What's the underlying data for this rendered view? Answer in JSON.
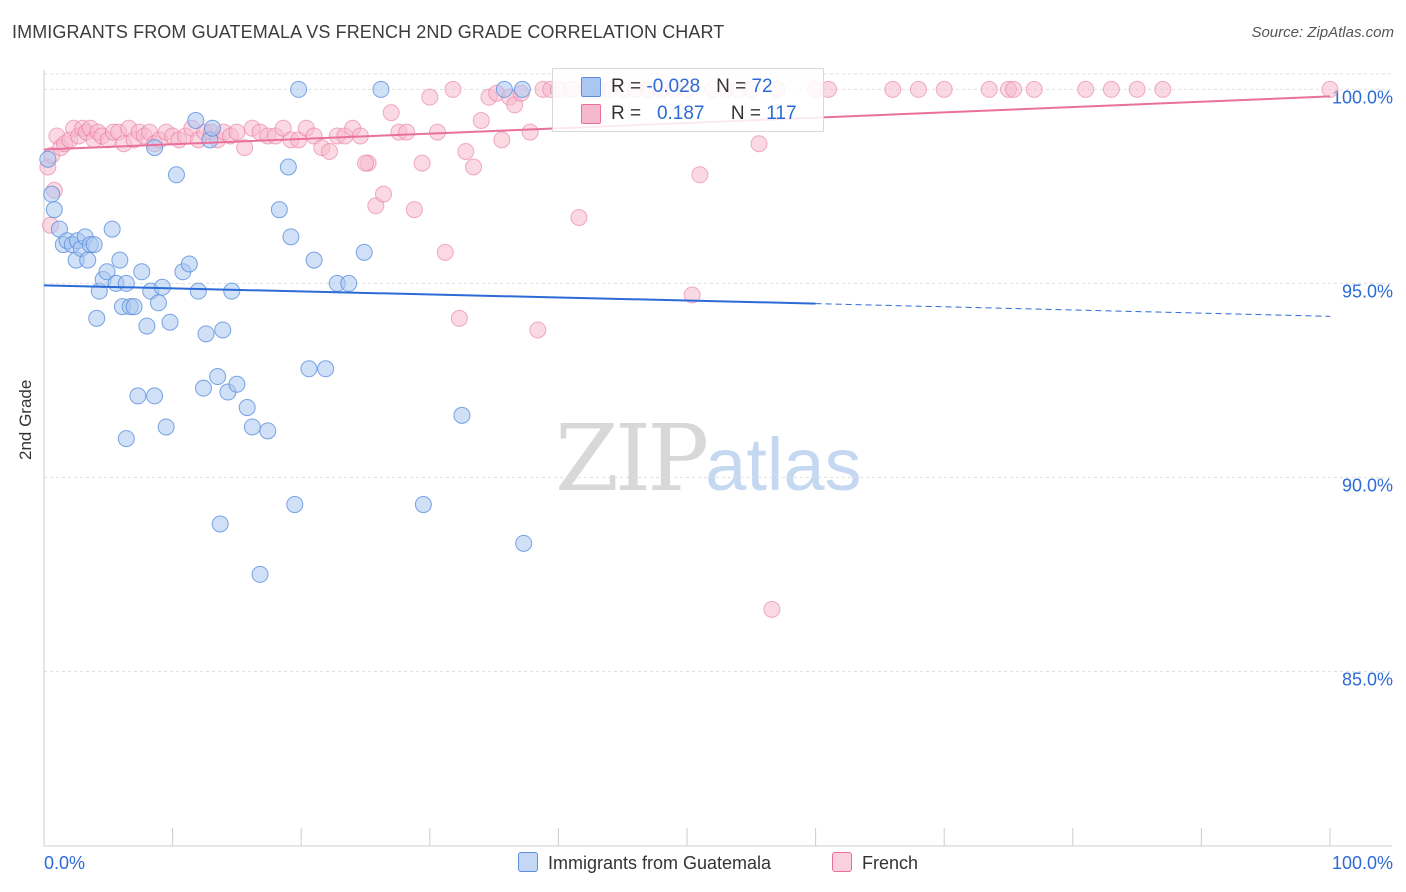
{
  "header": {
    "title": "IMMIGRANTS FROM GUATEMALA VS FRENCH 2ND GRADE CORRELATION CHART",
    "source": "Source: ZipAtlas.com"
  },
  "watermark": {
    "zip": "ZIP",
    "atlas": "atlas"
  },
  "legend_top": {
    "rows": [
      {
        "r_label": "R = ",
        "r_value": "-0.028",
        "n_label": "N = ",
        "n_value": "72"
      },
      {
        "r_label": "R = ",
        "r_value": "0.187",
        "n_label": "N = ",
        "n_value": "117"
      }
    ]
  },
  "chart_data": {
    "type": "scatter",
    "title": "IMMIGRANTS FROM GUATEMALA VS FRENCH 2ND GRADE CORRELATION CHART",
    "xlabel": "",
    "ylabel": "2nd Grade",
    "xlim": [
      0,
      100
    ],
    "ylim": [
      80.5,
      100.5
    ],
    "x_tick_labels": [
      "0.0%",
      "100.0%"
    ],
    "y_ticks": [
      85,
      90,
      95,
      100
    ],
    "y_tick_labels": [
      "85.0%",
      "90.0%",
      "95.0%",
      "100.0%"
    ],
    "grid": true,
    "legend_position": "bottom",
    "colors": {
      "series1": "#5b8fde",
      "series1_fill": "#aac7f0",
      "series2": "#e8709a",
      "series2_fill": "#f6b9cc",
      "tick_label": "#2c6bd6"
    },
    "series": [
      {
        "name": "Immigrants from Guatemala",
        "R": -0.028,
        "N": 72,
        "trend": {
          "x": [
            0,
            60,
            100
          ],
          "y": [
            94.95,
            94.48,
            94.15
          ],
          "solid_until": 60
        },
        "points": [
          [
            0.3,
            98.2
          ],
          [
            0.6,
            97.3
          ],
          [
            0.8,
            96.9
          ],
          [
            1.2,
            96.4
          ],
          [
            1.5,
            96.0
          ],
          [
            1.8,
            96.1
          ],
          [
            2.2,
            96.0
          ],
          [
            2.5,
            95.6
          ],
          [
            2.6,
            96.1
          ],
          [
            2.9,
            95.9
          ],
          [
            3.2,
            96.2
          ],
          [
            3.4,
            95.6
          ],
          [
            3.6,
            96.0
          ],
          [
            3.9,
            96.0
          ],
          [
            4.1,
            94.1
          ],
          [
            4.3,
            94.8
          ],
          [
            4.6,
            95.1
          ],
          [
            4.9,
            95.3
          ],
          [
            5.3,
            96.4
          ],
          [
            5.6,
            95.0
          ],
          [
            5.9,
            95.6
          ],
          [
            6.1,
            94.4
          ],
          [
            6.4,
            95.0
          ],
          [
            6.7,
            94.4
          ],
          [
            7.0,
            94.4
          ],
          [
            7.3,
            92.1
          ],
          [
            7.6,
            95.3
          ],
          [
            8.0,
            93.9
          ],
          [
            8.3,
            94.8
          ],
          [
            8.6,
            92.1
          ],
          [
            8.9,
            94.5
          ],
          [
            9.2,
            94.9
          ],
          [
            9.5,
            91.3
          ],
          [
            9.8,
            94.0
          ],
          [
            10.3,
            97.8
          ],
          [
            10.8,
            95.3
          ],
          [
            11.3,
            95.5
          ],
          [
            11.8,
            99.2
          ],
          [
            12.0,
            94.8
          ],
          [
            12.4,
            92.3
          ],
          [
            12.6,
            93.7
          ],
          [
            12.9,
            98.7
          ],
          [
            13.1,
            99.0
          ],
          [
            13.5,
            92.6
          ],
          [
            13.9,
            93.8
          ],
          [
            14.3,
            92.2
          ],
          [
            14.6,
            94.8
          ],
          [
            15.0,
            92.4
          ],
          [
            15.8,
            91.8
          ],
          [
            16.2,
            91.3
          ],
          [
            16.8,
            87.5
          ],
          [
            17.4,
            91.2
          ],
          [
            18.3,
            96.9
          ],
          [
            19.0,
            98.0
          ],
          [
            19.2,
            96.2
          ],
          [
            19.5,
            89.3
          ],
          [
            20.6,
            92.8
          ],
          [
            21.0,
            95.6
          ],
          [
            21.9,
            92.8
          ],
          [
            22.8,
            95.0
          ],
          [
            23.7,
            95.0
          ],
          [
            24.9,
            95.8
          ],
          [
            26.2,
            100.0
          ],
          [
            29.5,
            89.3
          ],
          [
            32.5,
            91.6
          ],
          [
            35.8,
            100.0
          ],
          [
            37.2,
            100.0
          ],
          [
            37.3,
            88.3
          ],
          [
            6.4,
            91.0
          ],
          [
            8.6,
            98.5
          ],
          [
            13.7,
            88.8
          ],
          [
            19.8,
            100.0
          ]
        ]
      },
      {
        "name": "French",
        "R": 0.187,
        "N": 117,
        "trend": {
          "x": [
            0,
            100
          ],
          "y": [
            98.45,
            99.82
          ]
        },
        "points": [
          [
            0.3,
            98.0
          ],
          [
            0.5,
            96.5
          ],
          [
            0.6,
            98.3
          ],
          [
            0.8,
            97.4
          ],
          [
            1.0,
            98.8
          ],
          [
            1.3,
            98.5
          ],
          [
            1.6,
            98.6
          ],
          [
            2.0,
            98.7
          ],
          [
            2.3,
            99.0
          ],
          [
            2.7,
            98.8
          ],
          [
            3.0,
            99.0
          ],
          [
            3.3,
            98.9
          ],
          [
            3.6,
            99.0
          ],
          [
            3.9,
            98.7
          ],
          [
            4.2,
            98.9
          ],
          [
            4.5,
            98.8
          ],
          [
            5.0,
            98.7
          ],
          [
            5.4,
            98.9
          ],
          [
            5.8,
            98.9
          ],
          [
            6.2,
            98.6
          ],
          [
            6.6,
            99.0
          ],
          [
            7.0,
            98.7
          ],
          [
            7.4,
            98.9
          ],
          [
            7.8,
            98.8
          ],
          [
            8.2,
            98.9
          ],
          [
            8.6,
            98.6
          ],
          [
            9.0,
            98.7
          ],
          [
            9.5,
            98.9
          ],
          [
            10.0,
            98.8
          ],
          [
            10.5,
            98.7
          ],
          [
            11.0,
            98.8
          ],
          [
            11.5,
            99.0
          ],
          [
            12.0,
            98.7
          ],
          [
            12.5,
            98.9
          ],
          [
            13.0,
            98.9
          ],
          [
            13.5,
            98.7
          ],
          [
            14.0,
            98.9
          ],
          [
            14.5,
            98.8
          ],
          [
            15.0,
            98.9
          ],
          [
            15.6,
            98.5
          ],
          [
            16.2,
            99.0
          ],
          [
            16.8,
            98.9
          ],
          [
            17.4,
            98.8
          ],
          [
            18.0,
            98.8
          ],
          [
            18.6,
            99.0
          ],
          [
            19.2,
            98.7
          ],
          [
            19.8,
            98.7
          ],
          [
            20.4,
            99.0
          ],
          [
            21.0,
            98.8
          ],
          [
            21.6,
            98.5
          ],
          [
            22.2,
            98.4
          ],
          [
            22.8,
            98.8
          ],
          [
            23.4,
            98.8
          ],
          [
            24.0,
            99.0
          ],
          [
            24.6,
            98.8
          ],
          [
            25.2,
            98.1
          ],
          [
            25.8,
            97.0
          ],
          [
            26.4,
            97.3
          ],
          [
            27.0,
            99.4
          ],
          [
            27.6,
            98.9
          ],
          [
            28.2,
            98.9
          ],
          [
            28.8,
            96.9
          ],
          [
            29.4,
            98.1
          ],
          [
            30.0,
            99.8
          ],
          [
            30.6,
            98.9
          ],
          [
            31.2,
            95.8
          ],
          [
            31.8,
            100.0
          ],
          [
            32.3,
            94.1
          ],
          [
            32.8,
            98.4
          ],
          [
            33.4,
            98.0
          ],
          [
            34.0,
            99.2
          ],
          [
            34.6,
            99.8
          ],
          [
            35.2,
            99.9
          ],
          [
            35.6,
            98.7
          ],
          [
            36.2,
            99.8
          ],
          [
            36.6,
            99.6
          ],
          [
            37.1,
            99.9
          ],
          [
            37.8,
            98.9
          ],
          [
            38.4,
            93.8
          ],
          [
            38.8,
            100.0
          ],
          [
            39.4,
            100.0
          ],
          [
            40.0,
            100.0
          ],
          [
            41.0,
            100.0
          ],
          [
            41.6,
            96.7
          ],
          [
            42.2,
            100.0
          ],
          [
            43.0,
            100.0
          ],
          [
            44.0,
            100.0
          ],
          [
            45.0,
            100.0
          ],
          [
            46.0,
            100.0
          ],
          [
            47.0,
            100.0
          ],
          [
            48.0,
            100.0
          ],
          [
            49.0,
            100.0
          ],
          [
            50.0,
            100.0
          ],
          [
            50.4,
            94.7
          ],
          [
            51.0,
            97.8
          ],
          [
            52.0,
            100.0
          ],
          [
            53.0,
            100.0
          ],
          [
            54.0,
            100.0
          ],
          [
            55.0,
            100.0
          ],
          [
            55.6,
            98.6
          ],
          [
            57.0,
            100.0
          ],
          [
            60.0,
            100.0
          ],
          [
            61.0,
            100.0
          ],
          [
            66.0,
            100.0
          ],
          [
            68.0,
            100.0
          ],
          [
            70.0,
            100.0
          ],
          [
            73.5,
            100.0
          ],
          [
            75.0,
            100.0
          ],
          [
            75.4,
            100.0
          ],
          [
            77.0,
            100.0
          ],
          [
            81.0,
            100.0
          ],
          [
            83.0,
            100.0
          ],
          [
            85.0,
            100.0
          ],
          [
            87.0,
            100.0
          ],
          [
            100.0,
            100.0
          ],
          [
            56.6,
            86.6
          ],
          [
            25.0,
            98.1
          ]
        ]
      }
    ]
  }
}
